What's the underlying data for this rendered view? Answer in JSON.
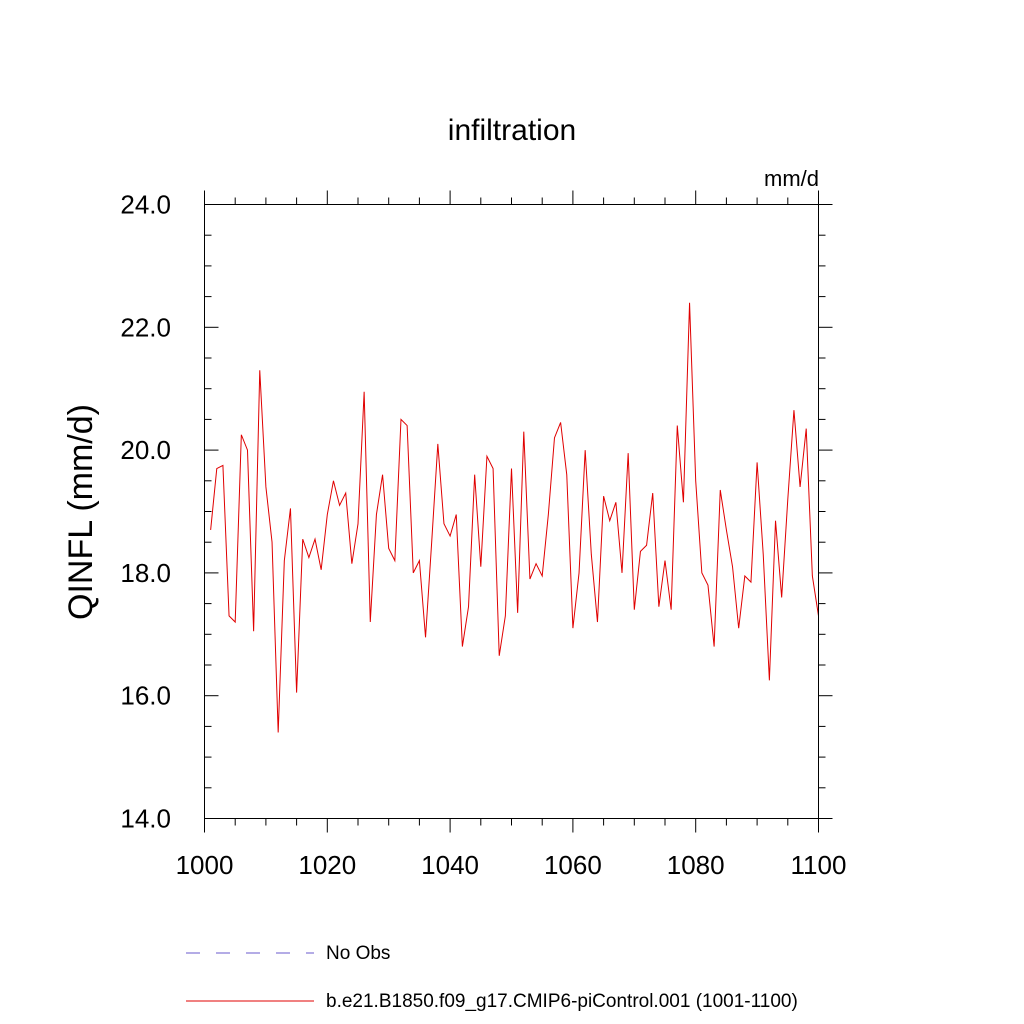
{
  "chart_data": {
    "type": "line",
    "title": "infiltration",
    "units_label": "mm/d",
    "ylabel": "QINFL  (mm/d)",
    "xlabel": "",
    "xlim": [
      1000,
      1100
    ],
    "ylim": [
      14.0,
      24.0
    ],
    "x_ticks": [
      1000,
      1020,
      1040,
      1060,
      1080,
      1100
    ],
    "y_ticks": [
      14.0,
      16.0,
      18.0,
      20.0,
      22.0,
      24.0
    ],
    "x_tick_labels": [
      "1000",
      "1020",
      "1040",
      "1060",
      "1080",
      "1100"
    ],
    "y_tick_labels": [
      "14.0",
      "16.0",
      "18.0",
      "20.0",
      "22.0",
      "24.0"
    ],
    "legend_position": "bottom",
    "series": [
      {
        "name": "No Obs",
        "color": "#6a5acd",
        "style": "dashed",
        "x": [],
        "values": []
      },
      {
        "name": "b.e21.B1850.f09_g17.CMIP6-piControl.001 (1001-1100)",
        "color": "#e00000",
        "style": "solid",
        "x_start": 1001,
        "values": [
          18.7,
          19.7,
          19.75,
          17.3,
          17.2,
          20.25,
          20.0,
          17.05,
          21.3,
          19.4,
          18.5,
          15.4,
          18.2,
          19.05,
          16.05,
          18.55,
          18.25,
          18.55,
          18.05,
          18.95,
          19.5,
          19.1,
          19.3,
          18.15,
          18.8,
          20.95,
          17.2,
          18.95,
          19.6,
          18.4,
          18.2,
          20.5,
          20.4,
          18.0,
          18.2,
          16.95,
          18.5,
          20.1,
          18.8,
          18.6,
          18.95,
          16.8,
          17.45,
          19.6,
          18.1,
          19.9,
          19.7,
          16.65,
          17.3,
          19.7,
          17.35,
          20.3,
          17.9,
          18.15,
          17.95,
          18.95,
          20.2,
          20.45,
          19.6,
          17.1,
          18.0,
          20.0,
          18.3,
          17.2,
          19.25,
          18.85,
          19.15,
          18.0,
          19.95,
          17.4,
          18.35,
          18.45,
          19.3,
          17.45,
          18.2,
          17.4,
          20.4,
          19.15,
          22.4,
          19.5,
          18.0,
          17.8,
          16.8,
          19.35,
          18.7,
          18.1,
          17.1,
          17.95,
          17.85,
          19.8,
          18.3,
          16.25,
          18.85,
          17.6,
          19.2,
          20.65,
          19.4,
          20.35,
          17.95,
          17.3
        ]
      }
    ]
  }
}
